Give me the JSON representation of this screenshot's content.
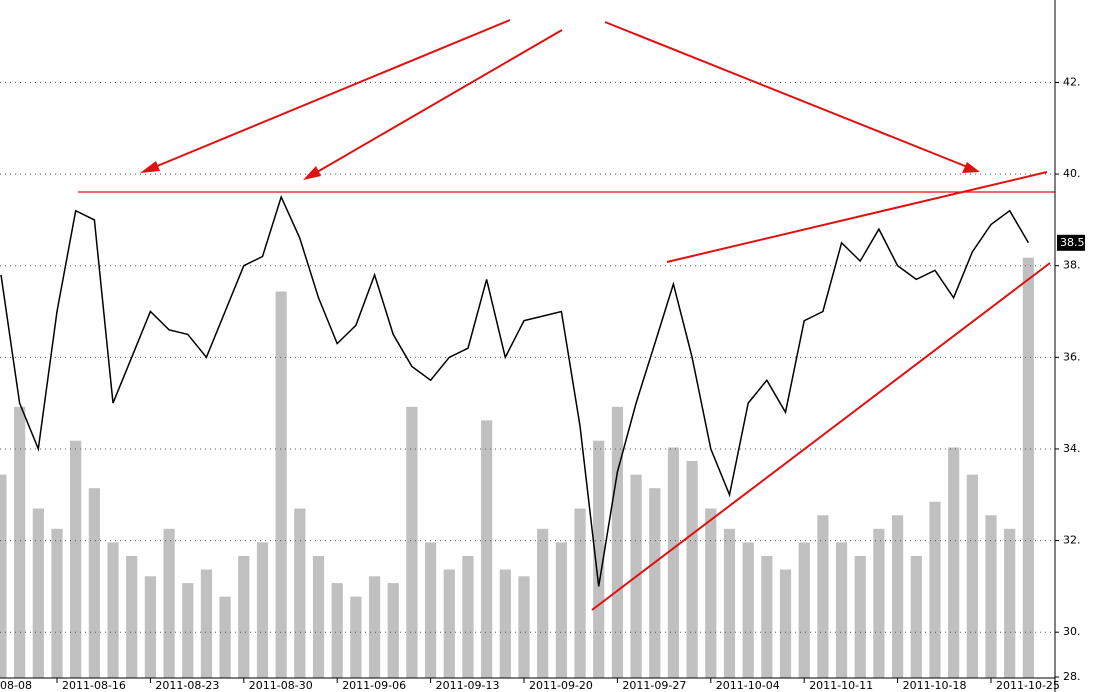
{
  "chart_data": {
    "type": "line",
    "categories": [
      "08-08",
      null,
      null,
      null,
      null,
      "2011-08-16",
      null,
      null,
      null,
      null,
      "2011-08-23",
      null,
      null,
      null,
      null,
      "2011-08-30",
      null,
      null,
      null,
      null,
      "2011-09-06",
      null,
      null,
      null,
      null,
      "2011-09-13",
      null,
      null,
      null,
      null,
      "2011-09-20",
      null,
      null,
      null,
      null,
      "2011-09-27",
      null,
      null,
      null,
      null,
      "2011-10-04",
      null,
      null,
      null,
      null,
      "2011-10-11",
      null,
      null,
      null,
      null,
      "2011-10-18",
      null,
      null,
      null,
      null,
      "2011-10-25",
      null,
      null
    ],
    "series": [
      {
        "color": "#000000",
        "values": [
          null,
          null,
          37.8,
          35,
          34,
          37,
          39.2,
          39,
          35,
          36,
          37,
          36.6,
          36.5,
          36,
          37,
          38,
          38.2,
          39.5,
          38.6,
          37.3,
          36.3,
          36.7,
          37.8,
          36.5,
          35.8,
          35.5,
          36,
          36.2,
          37.7,
          36,
          36.8,
          36.9,
          37,
          34.5,
          31,
          33.5,
          35,
          36.3,
          37.6,
          36,
          34,
          33,
          35,
          35.5,
          34.8,
          36.8,
          37,
          38.5,
          38.1,
          38.8,
          38,
          37.7,
          37.9,
          37.3,
          38.3,
          38.9,
          39.2,
          38.5
        ]
      },
      {
        "color": "#c0c0c0",
        "axis": "y2",
        "values": [
          null,
          null,
          30,
          40,
          25,
          22,
          35,
          28,
          20,
          18,
          15,
          22,
          14,
          16,
          12,
          18,
          20,
          57,
          25,
          18,
          14,
          12,
          15,
          14,
          40,
          20,
          16,
          18,
          38,
          16,
          15,
          22,
          20,
          25,
          35,
          40,
          30,
          28,
          34,
          32,
          25,
          22,
          20,
          18,
          16,
          20,
          24,
          20,
          18,
          22,
          24,
          18,
          26,
          34,
          30,
          24,
          22,
          62
        ]
      }
    ],
    "ylim": [
      29,
      43.8
    ],
    "yticks": [
      {
        "value": 28,
        "label": "28."
      },
      {
        "value": 30,
        "label": "30."
      },
      {
        "value": 32,
        "label": "32."
      },
      {
        "value": 34,
        "label": "34."
      },
      {
        "value": 36,
        "label": "36."
      },
      {
        "value": 38,
        "label": "38."
      },
      {
        "value": 40,
        "label": "40."
      },
      {
        "value": 42,
        "label": "42."
      }
    ],
    "y2lim": [
      0,
      100
    ],
    "last_value_label": "38.5",
    "grid": true
  }
}
